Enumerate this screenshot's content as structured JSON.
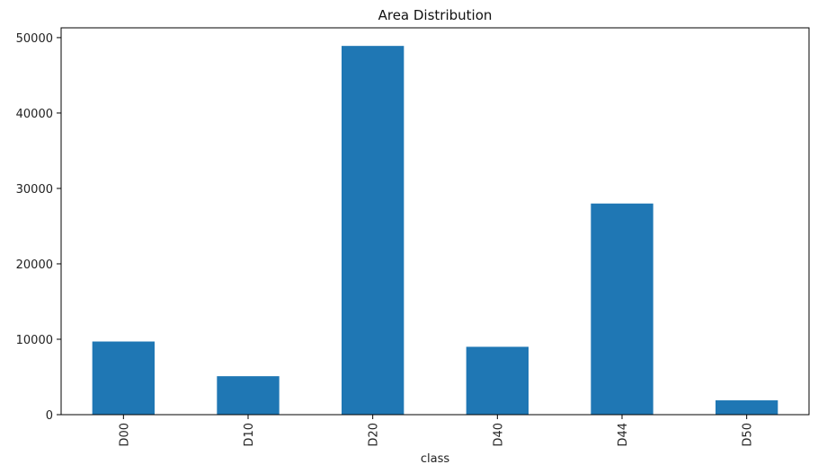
{
  "chart_data": {
    "type": "bar",
    "title": "Area Distribution",
    "xlabel": "class",
    "ylabel": "",
    "categories": [
      "D00",
      "D10",
      "D20",
      "D40",
      "D44",
      "D50"
    ],
    "values": [
      9700,
      5100,
      48900,
      9000,
      28000,
      1900
    ],
    "ylim": [
      0,
      51300
    ],
    "y_ticks": [
      0,
      10000,
      20000,
      30000,
      40000,
      50000
    ],
    "y_tick_labels": [
      "0",
      "10000",
      "20000",
      "30000",
      "40000",
      "50000"
    ],
    "x_tick_rotation": "vertical",
    "grid": false,
    "legend": "none",
    "bar_color": "#1f77b4"
  }
}
